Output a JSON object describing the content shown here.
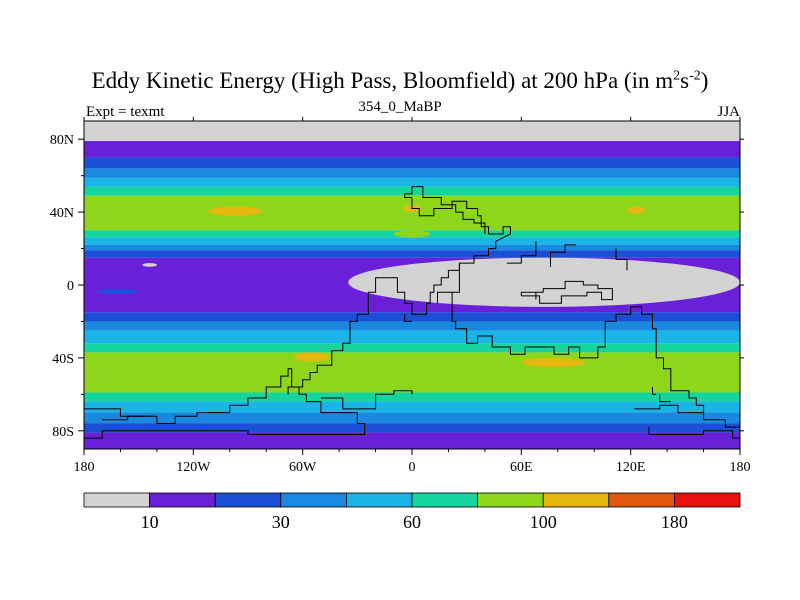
{
  "title_main": "Eddy Kinetic Energy (High Pass, Bloomfield) at 200 hPa (in m",
  "title_sup1": "2",
  "title_mid": "s",
  "title_sup2": "-2",
  "title_end": ")",
  "subtitle": "354_0_MaBP",
  "left_label": "Expt = texmt",
  "right_label": "JJA",
  "colors": {
    "bins": [
      "#d3d3d3",
      "#6a1fd8",
      "#1a4fd6",
      "#1a88df",
      "#1ab4e6",
      "#15d4a0",
      "#8ed61a",
      "#e6b80f",
      "#e0580e",
      "#e6100e"
    ]
  },
  "chart_data": {
    "type": "heatmap",
    "title": "Eddy Kinetic Energy (High Pass, Bloomfield) at 200 hPa (in m^2 s^-2)",
    "xlabel": "",
    "ylabel": "",
    "x_range": [
      -180,
      180
    ],
    "y_range": [
      -90,
      90
    ],
    "x_ticks": [
      {
        "value": -180,
        "label": "180"
      },
      {
        "value": -120,
        "label": "120W"
      },
      {
        "value": -60,
        "label": "60W"
      },
      {
        "value": 0,
        "label": "0"
      },
      {
        "value": 60,
        "label": "60E"
      },
      {
        "value": 120,
        "label": "120E"
      },
      {
        "value": 180,
        "label": "180"
      }
    ],
    "y_ticks": [
      {
        "value": 80,
        "label": "80N"
      },
      {
        "value": 40,
        "label": "40N"
      },
      {
        "value": 0,
        "label": "0"
      },
      {
        "value": -40,
        "label": "40S"
      },
      {
        "value": -80,
        "label": "80S"
      }
    ],
    "colorbar_labels": [
      {
        "boundary": 1,
        "label": "10"
      },
      {
        "boundary": 3,
        "label": "30"
      },
      {
        "boundary": 5,
        "label": "60"
      },
      {
        "boundary": 7,
        "label": "100"
      },
      {
        "boundary": 9,
        "label": "180"
      }
    ],
    "latitude_bands": [
      {
        "lat_range": [
          90,
          79
        ],
        "level": 0
      },
      {
        "lat_range": [
          79,
          70
        ],
        "level": 1
      },
      {
        "lat_range": [
          70,
          64
        ],
        "level": 2
      },
      {
        "lat_range": [
          64,
          59
        ],
        "level": 3
      },
      {
        "lat_range": [
          59,
          54
        ],
        "level": 4
      },
      {
        "lat_range": [
          54,
          49
        ],
        "level": 5
      },
      {
        "lat_range": [
          49,
          30
        ],
        "level": 6
      },
      {
        "lat_range": [
          30,
          26
        ],
        "level": 5
      },
      {
        "lat_range": [
          26,
          22
        ],
        "level": 4
      },
      {
        "lat_range": [
          22,
          19
        ],
        "level": 3
      },
      {
        "lat_range": [
          19,
          15
        ],
        "level": 2
      },
      {
        "lat_range": [
          15,
          -15
        ],
        "level": 1
      },
      {
        "lat_range": [
          -15,
          -20
        ],
        "level": 2
      },
      {
        "lat_range": [
          -20,
          -25
        ],
        "level": 3
      },
      {
        "lat_range": [
          -25,
          -32
        ],
        "level": 4
      },
      {
        "lat_range": [
          -32,
          -37
        ],
        "level": 5
      },
      {
        "lat_range": [
          -37,
          -59
        ],
        "level": 6
      },
      {
        "lat_range": [
          -59,
          -64
        ],
        "level": 5
      },
      {
        "lat_range": [
          -64,
          -70
        ],
        "level": 4
      },
      {
        "lat_range": [
          -70,
          -76
        ],
        "level": 3
      },
      {
        "lat_range": [
          -76,
          -81
        ],
        "level": 2
      },
      {
        "lat_range": [
          -81,
          -90
        ],
        "level": 1
      }
    ],
    "features": [
      {
        "name": "nh-jet-core-west",
        "level": 7,
        "lon": [
          -112,
          -82
        ],
        "lat": [
          43,
          38
        ]
      },
      {
        "name": "nh-jet-core-atlantic",
        "level": 7,
        "lon": [
          -5,
          5
        ],
        "lat": [
          44,
          40
        ]
      },
      {
        "name": "nh-jet-core-east",
        "level": 7,
        "lon": [
          118,
          128
        ],
        "lat": [
          43,
          39
        ]
      },
      {
        "name": "sh-jet-core-pacific",
        "level": 7,
        "lon": [
          -65,
          -45
        ],
        "lat": [
          -37,
          -42
        ]
      },
      {
        "name": "sh-jet-core-indian",
        "level": 7,
        "lon": [
          60,
          95
        ],
        "lat": [
          -40,
          -45
        ]
      },
      {
        "name": "tropical-minimum",
        "level": 0,
        "lon": [
          -35,
          180
        ],
        "lat": [
          15,
          -12
        ]
      },
      {
        "name": "tropical-minimum-small",
        "level": 0,
        "lon": [
          -148,
          -140
        ],
        "lat": [
          12,
          10
        ]
      },
      {
        "name": "nh-high-wave-atlantic",
        "level": 6,
        "lon": [
          -10,
          10
        ],
        "lat": [
          30,
          26
        ]
      },
      {
        "name": "blue-patch-pacific",
        "level": 2,
        "lon": [
          -173,
          -150
        ],
        "lat": [
          -2,
          -5
        ]
      }
    ],
    "coastlines": [
      [
        [
          0,
          48
        ],
        [
          0,
          42
        ],
        [
          4,
          42
        ],
        [
          4,
          38
        ],
        [
          12,
          38
        ],
        [
          12,
          42
        ],
        [
          22,
          42
        ],
        [
          22,
          46
        ],
        [
          30,
          46
        ],
        [
          30,
          42
        ],
        [
          36,
          42
        ],
        [
          36,
          38
        ],
        [
          38,
          38
        ],
        [
          38,
          32
        ],
        [
          42,
          32
        ],
        [
          42,
          28
        ],
        [
          50,
          28
        ],
        [
          50,
          32
        ],
        [
          54,
          32
        ],
        [
          54,
          28
        ],
        [
          46,
          24
        ],
        [
          46,
          20
        ],
        [
          42,
          20
        ],
        [
          42,
          16
        ],
        [
          34,
          16
        ],
        [
          34,
          12
        ],
        [
          26,
          12
        ],
        [
          26,
          8
        ],
        [
          20,
          8
        ],
        [
          20,
          4
        ],
        [
          16,
          4
        ],
        [
          16,
          0
        ],
        [
          12,
          0
        ],
        [
          12,
          -4
        ],
        [
          10,
          -4
        ],
        [
          10,
          -10
        ],
        [
          8,
          -10
        ],
        [
          8,
          -16
        ],
        [
          0,
          -16
        ],
        [
          0,
          -10
        ],
        [
          -4,
          -10
        ],
        [
          -4,
          -4
        ],
        [
          -8,
          -4
        ],
        [
          -8,
          4
        ],
        [
          -20,
          4
        ],
        [
          -20,
          -4
        ],
        [
          -24,
          -4
        ],
        [
          -24,
          -16
        ],
        [
          -30,
          -16
        ],
        [
          -30,
          -20
        ],
        [
          -34,
          -20
        ],
        [
          -34,
          -32
        ],
        [
          -38,
          -32
        ],
        [
          -38,
          -36
        ],
        [
          -44,
          -36
        ],
        [
          -44,
          -44
        ],
        [
          -52,
          -44
        ],
        [
          -52,
          -48
        ],
        [
          -56,
          -48
        ],
        [
          -56,
          -52
        ],
        [
          -60,
          -52
        ],
        [
          -60,
          -56
        ],
        [
          -68,
          -56
        ],
        [
          -68,
          -60
        ]
      ],
      [
        [
          0,
          48
        ],
        [
          -4,
          48
        ],
        [
          -4,
          50
        ],
        [
          0,
          50
        ],
        [
          0,
          54
        ],
        [
          6,
          54
        ],
        [
          6,
          48
        ],
        [
          16,
          48
        ],
        [
          16,
          44
        ],
        [
          24,
          44
        ],
        [
          24,
          40
        ],
        [
          28,
          40
        ],
        [
          28,
          36
        ],
        [
          34,
          36
        ],
        [
          34,
          34
        ],
        [
          40,
          34
        ],
        [
          40,
          28
        ]
      ],
      [
        [
          26,
          12
        ],
        [
          26,
          -4
        ],
        [
          22,
          -4
        ],
        [
          22,
          -20
        ],
        [
          24,
          -20
        ],
        [
          24,
          -24
        ],
        [
          30,
          -24
        ],
        [
          30,
          -32
        ],
        [
          36,
          -32
        ],
        [
          36,
          -28
        ],
        [
          44,
          -28
        ],
        [
          44,
          -34
        ],
        [
          54,
          -34
        ],
        [
          54,
          -38
        ],
        [
          62,
          -38
        ],
        [
          62,
          -34
        ],
        [
          78,
          -34
        ],
        [
          78,
          -38
        ],
        [
          86,
          -38
        ],
        [
          86,
          -34
        ],
        [
          92,
          -34
        ],
        [
          92,
          -40
        ],
        [
          102,
          -40
        ],
        [
          102,
          -34
        ],
        [
          106,
          -34
        ],
        [
          106,
          -20
        ],
        [
          112,
          -20
        ],
        [
          112,
          -16
        ],
        [
          120,
          -16
        ],
        [
          120,
          -12
        ],
        [
          126,
          -12
        ],
        [
          126,
          -16
        ],
        [
          132,
          -16
        ],
        [
          132,
          -24
        ],
        [
          134,
          -24
        ],
        [
          134,
          -40
        ],
        [
          138,
          -40
        ],
        [
          138,
          -46
        ],
        [
          142,
          -46
        ],
        [
          142,
          -58
        ],
        [
          152,
          -58
        ],
        [
          152,
          -62
        ],
        [
          156,
          -62
        ],
        [
          156,
          -66
        ],
        [
          160,
          -66
        ],
        [
          160,
          -70
        ]
      ],
      [
        [
          60,
          -6
        ],
        [
          70,
          -6
        ],
        [
          70,
          -10
        ],
        [
          82,
          -10
        ],
        [
          82,
          -6
        ],
        [
          96,
          -6
        ],
        [
          96,
          -4
        ],
        [
          104,
          -4
        ],
        [
          104,
          -8
        ],
        [
          110,
          -8
        ],
        [
          110,
          -2
        ],
        [
          102,
          -2
        ],
        [
          102,
          0
        ],
        [
          94,
          0
        ],
        [
          94,
          2
        ],
        [
          84,
          2
        ],
        [
          84,
          -2
        ],
        [
          72,
          -2
        ],
        [
          72,
          -4
        ],
        [
          60,
          -4
        ],
        [
          60,
          -6
        ]
      ],
      [
        [
          -180,
          -68
        ],
        [
          -160,
          -68
        ],
        [
          -160,
          -72
        ],
        [
          -140,
          -72
        ],
        [
          -140,
          -76
        ],
        [
          -130,
          -76
        ],
        [
          -130,
          -72
        ],
        [
          -118,
          -72
        ],
        [
          -118,
          -70
        ],
        [
          -100,
          -70
        ],
        [
          -100,
          -66
        ],
        [
          -90,
          -66
        ],
        [
          -90,
          -62
        ],
        [
          -80,
          -62
        ],
        [
          -80,
          -56
        ],
        [
          -72,
          -56
        ],
        [
          -72,
          -50
        ],
        [
          -68,
          -50
        ],
        [
          -68,
          -46
        ],
        [
          -66,
          -46
        ],
        [
          -66,
          -56
        ],
        [
          -62,
          -56
        ],
        [
          -62,
          -60
        ],
        [
          -58,
          -60
        ],
        [
          -58,
          -64
        ],
        [
          -50,
          -64
        ],
        [
          -50,
          -70
        ],
        [
          -30,
          -70
        ],
        [
          -30,
          -76
        ],
        [
          -26,
          -76
        ],
        [
          -26,
          -82
        ],
        [
          -90,
          -82
        ],
        [
          -90,
          -80
        ],
        [
          -170,
          -80
        ],
        [
          -170,
          -84
        ],
        [
          -180,
          -84
        ]
      ],
      [
        [
          -50,
          -62
        ],
        [
          -38,
          -62
        ],
        [
          -38,
          -68
        ],
        [
          -20,
          -68
        ],
        [
          -20,
          -60
        ],
        [
          -10,
          -60
        ],
        [
          -10,
          -58
        ],
        [
          0,
          -58
        ],
        [
          0,
          -60
        ]
      ],
      [
        [
          122,
          -68
        ],
        [
          136,
          -68
        ],
        [
          136,
          -66
        ],
        [
          146,
          -66
        ],
        [
          146,
          -70
        ],
        [
          160,
          -70
        ],
        [
          160,
          -74
        ],
        [
          172,
          -74
        ],
        [
          172,
          -78
        ],
        [
          180,
          -78
        ]
      ],
      [
        [
          130,
          -78
        ],
        [
          130,
          -82
        ],
        [
          160,
          -82
        ],
        [
          160,
          -80
        ],
        [
          176,
          -80
        ],
        [
          176,
          -84
        ],
        [
          180,
          -84
        ]
      ],
      [
        [
          68,
          24
        ],
        [
          68,
          16
        ],
        [
          60,
          16
        ],
        [
          60,
          12
        ],
        [
          52,
          12
        ]
      ],
      [
        [
          76,
          10
        ],
        [
          76,
          18
        ],
        [
          84,
          18
        ],
        [
          84,
          22
        ],
        [
          90,
          22
        ]
      ],
      [
        [
          112,
          20
        ],
        [
          112,
          14
        ],
        [
          118,
          14
        ],
        [
          118,
          8
        ]
      ],
      [
        [
          22,
          -4
        ],
        [
          14,
          -4
        ],
        [
          14,
          -10
        ]
      ],
      [
        [
          -170,
          -74
        ],
        [
          -156,
          -74
        ],
        [
          -156,
          -72
        ],
        [
          -144,
          -72
        ]
      ],
      [
        [
          68,
          -4
        ],
        [
          68,
          -8
        ]
      ],
      [
        [
          -4,
          -16
        ],
        [
          -4,
          -20
        ],
        [
          0,
          -20
        ]
      ],
      [
        [
          132,
          -56
        ],
        [
          132,
          -60
        ],
        [
          134,
          -60
        ]
      ],
      [
        [
          142,
          -64
        ],
        [
          136,
          -64
        ],
        [
          136,
          -60
        ]
      ]
    ]
  }
}
